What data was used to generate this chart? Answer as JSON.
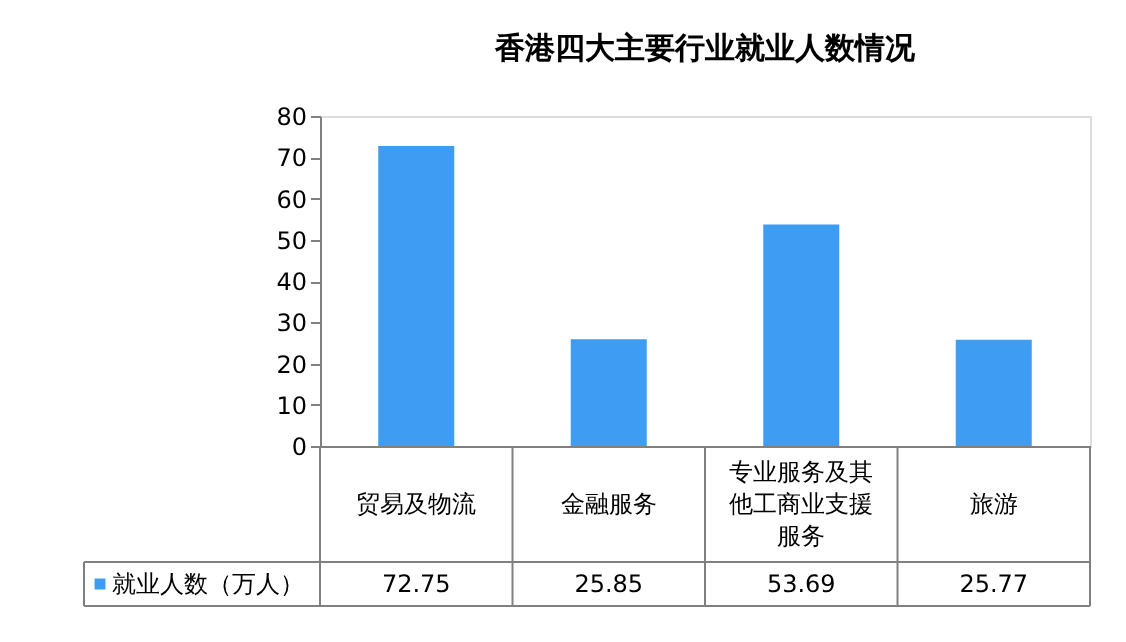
{
  "chart_data": {
    "type": "bar",
    "title": "香港四大主要行业就业人数情况",
    "categories": [
      "贸易及物流",
      "金融服务",
      "专业服务及其他工商业支援服务",
      "旅游"
    ],
    "series": [
      {
        "name": "就业人数（万人）",
        "color": "#3e9cf3",
        "values": [
          72.75,
          25.85,
          53.69,
          25.77
        ]
      }
    ],
    "ylim": [
      0,
      80
    ],
    "yticks": [
      0,
      10,
      20,
      30,
      40,
      50,
      60,
      70,
      80
    ],
    "grid": false,
    "legend": "bottom",
    "data_labels": true
  }
}
